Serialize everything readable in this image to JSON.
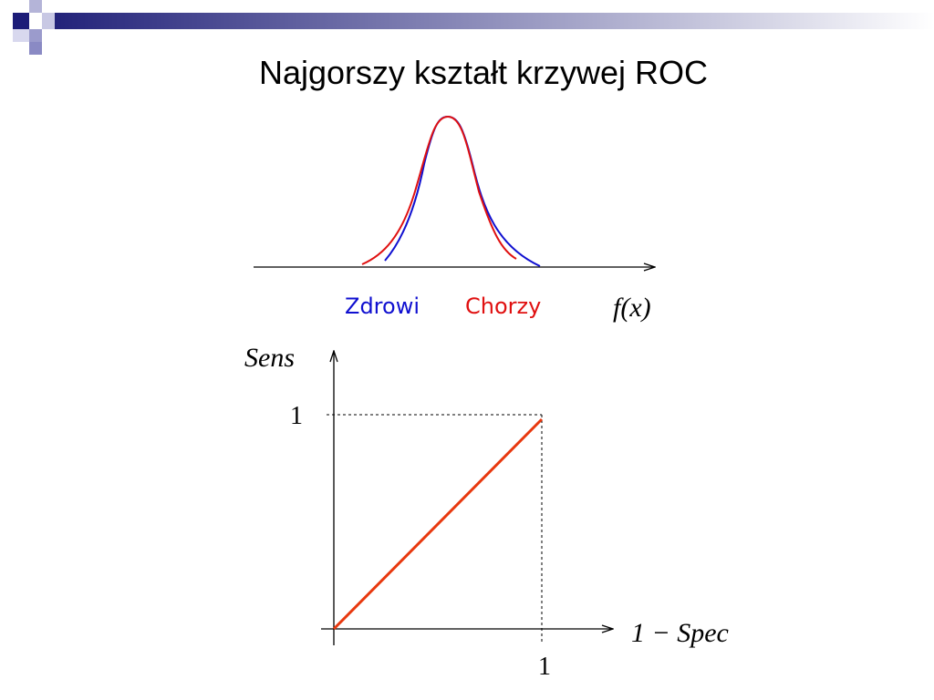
{
  "title": "Najgorszy kształt krzywej ROC",
  "distribution": {
    "labels": [
      "Zdrowi",
      "Chorzy"
    ],
    "axis_label": "f(x)"
  },
  "roc": {
    "y_label": "Sens",
    "x_label": "1 − Spec",
    "y_tick": "1",
    "x_tick": "1"
  }
}
